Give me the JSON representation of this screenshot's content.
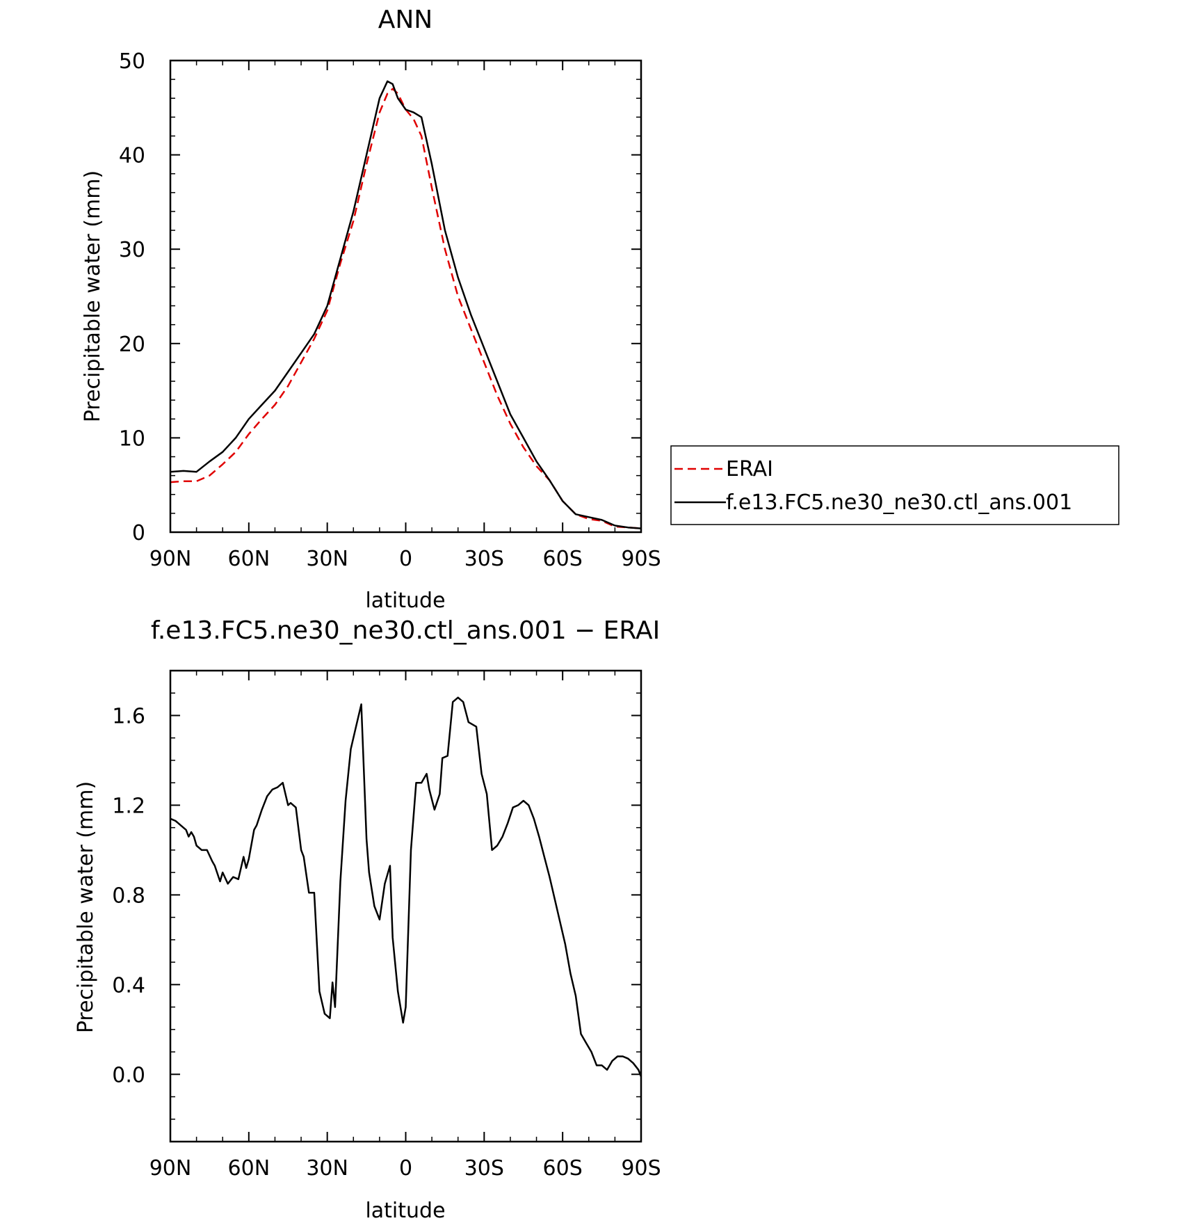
{
  "chart_data": [
    {
      "type": "line",
      "title": "ANN",
      "xlabel": "latitude",
      "ylabel": "Precipitable water (mm)",
      "xticks": [
        "90N",
        "60N",
        "30N",
        "0",
        "30S",
        "60S",
        "90S"
      ],
      "xlim": [
        90,
        -90
      ],
      "ylim": [
        0,
        50
      ],
      "yticks": [
        "0",
        "10",
        "20",
        "30",
        "40",
        "50"
      ],
      "grid": false,
      "legend_position": "right",
      "series": [
        {
          "name": "ERAI",
          "color": "#e00000",
          "dash": true,
          "x": [
            90,
            85,
            80,
            75,
            70,
            65,
            60,
            55,
            50,
            45,
            40,
            35,
            30,
            25,
            20,
            15,
            10,
            7,
            5,
            3,
            0,
            -3,
            -6,
            -10,
            -15,
            -20,
            -25,
            -30,
            -35,
            -40,
            -45,
            -50,
            -55,
            -60,
            -65,
            -70,
            -75,
            -80,
            -85,
            -90
          ],
          "values": [
            5.3,
            5.4,
            5.4,
            6.0,
            7.2,
            8.5,
            10.4,
            12.0,
            13.5,
            15.5,
            18.0,
            20.5,
            23.5,
            28.5,
            33.0,
            39.0,
            44.5,
            46.5,
            47.0,
            46.5,
            44.8,
            43.8,
            42.0,
            36.5,
            30.0,
            25.0,
            21.5,
            18.0,
            14.5,
            11.5,
            9.0,
            7.0,
            5.5,
            3.3,
            1.9,
            1.4,
            1.2,
            0.6,
            0.5,
            0.4
          ]
        },
        {
          "name": "f.e13.FC5.ne30_ne30.ctl_ans.001",
          "color": "#000000",
          "dash": false,
          "x": [
            90,
            85,
            80,
            75,
            70,
            65,
            60,
            55,
            50,
            45,
            40,
            35,
            30,
            25,
            20,
            15,
            10,
            7,
            5,
            3,
            0,
            -3,
            -6,
            -10,
            -15,
            -20,
            -25,
            -30,
            -35,
            -40,
            -45,
            -50,
            -55,
            -60,
            -65,
            -70,
            -75,
            -80,
            -85,
            -90
          ],
          "values": [
            6.4,
            6.5,
            6.4,
            7.5,
            8.5,
            10.0,
            12.0,
            13.5,
            15.0,
            17.0,
            19.0,
            21.0,
            24.0,
            29.0,
            34.0,
            40.0,
            46.0,
            47.8,
            47.5,
            46.0,
            44.8,
            44.5,
            44.0,
            39.0,
            32.0,
            27.0,
            23.0,
            19.5,
            16.0,
            12.5,
            10.0,
            7.5,
            5.5,
            3.3,
            1.9,
            1.6,
            1.3,
            0.7,
            0.5,
            0.4
          ]
        }
      ]
    },
    {
      "type": "line",
      "title": "f.e13.FC5.ne30_ne30.ctl_ans.001 − ERAI",
      "xlabel": "latitude",
      "ylabel": "Precipitable water (mm)",
      "xticks": [
        "90N",
        "60N",
        "30N",
        "0",
        "30S",
        "60S",
        "90S"
      ],
      "xlim": [
        90,
        -90
      ],
      "ylim": [
        -0.3,
        1.8
      ],
      "yticks": [
        "0.0",
        "0.4",
        "0.8",
        "1.2",
        "1.6"
      ],
      "grid": false,
      "series": [
        {
          "color": "#000000",
          "x": [
            90,
            88,
            86,
            84,
            83,
            82,
            81,
            80,
            78,
            76,
            74,
            73,
            71,
            70,
            68,
            66,
            64,
            62,
            61,
            60,
            58,
            57,
            55,
            53,
            51,
            49,
            47,
            45,
            44,
            42,
            40,
            39,
            37,
            35,
            33,
            31,
            29,
            28,
            27,
            25,
            23,
            21,
            19,
            17,
            15,
            14,
            12,
            10,
            8,
            6,
            5,
            3,
            1,
            0,
            -2,
            -4,
            -6,
            -8,
            -9,
            -11,
            -13,
            -14,
            -16,
            -18,
            -20,
            -22,
            -24,
            -27,
            -29,
            -31,
            -33,
            -35,
            -37,
            -39,
            -41,
            -43,
            -45,
            -47,
            -49,
            -51,
            -53,
            -55,
            -57,
            -59,
            -61,
            -63,
            -65,
            -67,
            -69,
            -71,
            -73,
            -75,
            -77,
            -79,
            -81,
            -83,
            -85,
            -87,
            -89,
            -90
          ],
          "values": [
            1.14,
            1.13,
            1.11,
            1.09,
            1.06,
            1.08,
            1.06,
            1.02,
            1.0,
            1.0,
            0.95,
            0.93,
            0.86,
            0.9,
            0.85,
            0.88,
            0.87,
            0.97,
            0.92,
            0.96,
            1.09,
            1.11,
            1.18,
            1.24,
            1.27,
            1.28,
            1.3,
            1.2,
            1.21,
            1.19,
            1.0,
            0.97,
            0.81,
            0.81,
            0.37,
            0.27,
            0.25,
            0.41,
            0.3,
            0.86,
            1.22,
            1.45,
            1.55,
            1.65,
            1.05,
            0.9,
            0.75,
            0.69,
            0.85,
            0.93,
            0.61,
            0.37,
            0.23,
            0.3,
            1.0,
            1.3,
            1.3,
            1.34,
            1.27,
            1.18,
            1.25,
            1.41,
            1.42,
            1.66,
            1.68,
            1.66,
            1.57,
            1.55,
            1.34,
            1.25,
            1.0,
            1.02,
            1.06,
            1.12,
            1.19,
            1.2,
            1.22,
            1.2,
            1.14,
            1.06,
            0.97,
            0.88,
            0.78,
            0.68,
            0.58,
            0.45,
            0.35,
            0.18,
            0.14,
            0.1,
            0.04,
            0.04,
            0.02,
            0.06,
            0.08,
            0.08,
            0.07,
            0.05,
            0.02,
            -0.01
          ]
        }
      ]
    }
  ]
}
